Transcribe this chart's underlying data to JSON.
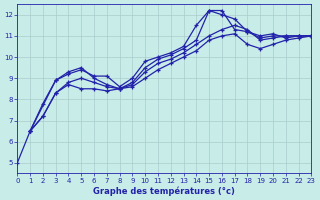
{
  "title": "",
  "xlabel": "Graphe des températures (°c)",
  "ylabel": "",
  "background_color": "#c8ece8",
  "grid_color": "#aacccc",
  "line_color": "#2222aa",
  "xlim": [
    0,
    23
  ],
  "ylim": [
    4.5,
    12.5
  ],
  "xticks": [
    0,
    1,
    2,
    3,
    4,
    5,
    6,
    7,
    8,
    9,
    10,
    11,
    12,
    13,
    14,
    15,
    16,
    17,
    18,
    19,
    20,
    21,
    22,
    23
  ],
  "yticks": [
    5,
    6,
    7,
    8,
    9,
    10,
    11,
    12
  ],
  "lines": [
    {
      "x": [
        0,
        1,
        2,
        3,
        4,
        5,
        6,
        7,
        8,
        9,
        10,
        11,
        12,
        13,
        14,
        15,
        16,
        17,
        18,
        19,
        20,
        21,
        22,
        23
      ],
      "y": [
        5.0,
        6.5,
        7.8,
        8.9,
        9.2,
        9.4,
        9.1,
        9.1,
        8.6,
        9.0,
        9.8,
        10.0,
        10.2,
        10.5,
        11.5,
        12.2,
        12.2,
        11.3,
        11.2,
        11.0,
        11.1,
        10.9,
        11.0,
        11.0
      ]
    },
    {
      "x": [
        1,
        2,
        3,
        4,
        5,
        6,
        7,
        8,
        9,
        10,
        11,
        12,
        13,
        14,
        15,
        16,
        17,
        18,
        19,
        20,
        21,
        22,
        23
      ],
      "y": [
        6.5,
        7.2,
        8.3,
        8.8,
        9.0,
        8.8,
        8.6,
        8.5,
        8.7,
        9.3,
        9.7,
        9.9,
        10.2,
        10.6,
        11.0,
        11.3,
        11.5,
        11.3,
        10.8,
        10.9,
        11.0,
        11.0,
        11.0
      ]
    },
    {
      "x": [
        1,
        3,
        4,
        5,
        6,
        7,
        8,
        9,
        10,
        11,
        12,
        13,
        14,
        15,
        16,
        17,
        18,
        19,
        20,
        21,
        22,
        23
      ],
      "y": [
        6.5,
        8.9,
        9.3,
        9.5,
        9.0,
        8.7,
        8.5,
        8.8,
        9.5,
        9.9,
        10.1,
        10.4,
        10.8,
        12.2,
        12.0,
        11.8,
        11.2,
        10.9,
        11.0,
        11.0,
        11.0,
        11.0
      ]
    },
    {
      "x": [
        1,
        2,
        3,
        4,
        5,
        6,
        7,
        8,
        9,
        10,
        11,
        12,
        13,
        14,
        15,
        16,
        17,
        18,
        19,
        20,
        21,
        22,
        23
      ],
      "y": [
        6.5,
        7.2,
        8.3,
        8.7,
        8.5,
        8.5,
        8.4,
        8.5,
        8.6,
        9.0,
        9.4,
        9.7,
        10.0,
        10.3,
        10.8,
        11.0,
        11.1,
        10.6,
        10.4,
        10.6,
        10.8,
        10.9,
        11.0
      ]
    }
  ]
}
